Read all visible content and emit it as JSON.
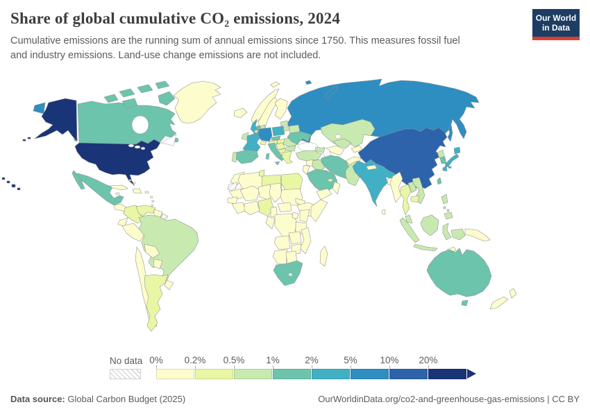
{
  "header": {
    "title": "Share of global cumulative CO₂ emissions, 2024",
    "subtitle": "Cumulative emissions are the running sum of annual emissions since 1750. This measures fossil fuel and industry emissions. Land-use change emissions are not included."
  },
  "logo": {
    "line1": "Our World",
    "line2": "in Data",
    "bg_color": "#1d3d63",
    "accent_color": "#dc3e31"
  },
  "legend": {
    "no_data_label": "No data"
  },
  "footer": {
    "source_prefix": "Data source:",
    "source_text": " Global Carbon Budget (2025)",
    "credit": "OurWorldinData.org/co2-and-greenhouse-gas-emissions | CC BY"
  },
  "chart_data": {
    "type": "choropleth",
    "title": "Share of global cumulative CO2 emissions, 2024",
    "unit": "% of global cumulative CO2 emissions since 1750",
    "legend_position": "bottom",
    "bins": [
      {
        "label": "0%",
        "range": "0–0.2%",
        "color": "#fdfccd"
      },
      {
        "label": "0.2%",
        "range": "0.2–0.5%",
        "color": "#e9f6a4"
      },
      {
        "label": "0.5%",
        "range": "0.5–1%",
        "color": "#c8e9b0"
      },
      {
        "label": "1%",
        "range": "1–2%",
        "color": "#6cc4ac"
      },
      {
        "label": "2%",
        "range": "2–5%",
        "color": "#41b0c4"
      },
      {
        "label": "5%",
        "range": "5–10%",
        "color": "#2e8ec1"
      },
      {
        "label": "10%",
        "range": "10–20%",
        "color": "#2c63ab"
      },
      {
        "label": "20%",
        "range": ">20%",
        "color": "#1a3478"
      }
    ],
    "countries": {
      "united-states": 7,
      "hawaii": 7,
      "canada": 3,
      "greenland": 0,
      "mexico": 3,
      "central-america": 0,
      "cuba": 0,
      "hispaniola": 0,
      "jamaica": 0,
      "puerto-rico": 0,
      "lesser-antilles": 0,
      "bahamas": 0,
      "colombia": 1,
      "venezuela": 1,
      "guyanas": 0,
      "french-guiana": "no_data",
      "ecuador": 0,
      "peru": 0,
      "brazil": 2,
      "bolivia": 0,
      "paraguay": 0,
      "chile": 0,
      "argentina": 1,
      "uruguay": 0,
      "iceland": 0,
      "ireland": 2,
      "united-kingdom": 4,
      "norway": 0,
      "sweden": 0,
      "finland": 0,
      "denmark": 2,
      "netherlands": 3,
      "belgium": 2,
      "germany": 5,
      "poland": 4,
      "czechia": 3,
      "austria": 1,
      "switzerland": 1,
      "france": 4,
      "spain": 3,
      "portugal": 2,
      "italy": 3,
      "sicily": 3,
      "sardinia": 3,
      "slovenia-croatia": 1,
      "serbia-bosnia": 1,
      "hungary": 1,
      "romania": 2,
      "bulgaria": 2,
      "greece": 1,
      "baltics-north": 2,
      "baltics-south": 2,
      "belarus": 2,
      "ukraine": 3,
      "svalbard": 0,
      "russia": 5,
      "novaya-zemlya": 5,
      "sakhalin": 5,
      "chukotka-west": 5,
      "franz-josef": 5,
      "kazakhstan": 2,
      "uzbekistan": 2,
      "turkmenistan": 0,
      "kyrgyzstan-tajikistan": 0,
      "turkey": 2,
      "caucasus": 2,
      "syria": 0,
      "iraq": 2,
      "jordan-israel": 0,
      "saudi-arabia": 3,
      "yemen": 0,
      "oman": 0,
      "gulf-states": 1,
      "iran": 3,
      "afghanistan": 0,
      "pakistan": 2,
      "india": 4,
      "sri-lanka": 0,
      "nepal": 0,
      "bangladesh": 0,
      "myanmar": 0,
      "thailand": 1,
      "laos": 2,
      "vietnam": 2,
      "cambodia": 1,
      "malaysia": 2,
      "china": 6,
      "hainan": 6,
      "mongolia": 0,
      "north-korea": 2,
      "south-korea": 3,
      "taiwan": 3,
      "japan-hokkaido": 4,
      "japan-honshu": 4,
      "japan-kyushu": 4,
      "japan-shikoku": 4,
      "philippines": 2,
      "indonesia-sumatra": 2,
      "indonesia-java": 2,
      "indonesia-borneo": 2,
      "indonesia-sulawesi": 2,
      "west-papua": 2,
      "timor": 0,
      "papua-new-guinea": 0,
      "australia": 3,
      "tasmania": 3,
      "new-zealand-north": 0,
      "new-zealand-south": 0,
      "morocco": 0,
      "western-sahara": "no_data",
      "algeria": 0,
      "tunisia": 1,
      "libya": 1,
      "egypt": 1,
      "mauritania": 0,
      "mali": 0,
      "niger": 0,
      "chad": 0,
      "sudan": 0,
      "eritrea": 0,
      "ethiopia": 0,
      "somalia": 0,
      "senegal": 0,
      "guinea-region": 0,
      "ivory-ghana": 0,
      "nigeria": 1,
      "cameroon": 0,
      "central-african-rep": 0,
      "dr-congo": 0,
      "congo-gabon": 0,
      "uganda": 0,
      "kenya": 0,
      "tanzania": 0,
      "angola": 0,
      "zambia": 0,
      "mozambique": 0,
      "zimbabwe": 0,
      "namibia": 0,
      "botswana": 0,
      "south-africa": 3,
      "lesotho": 0,
      "madagascar": 0
    }
  }
}
